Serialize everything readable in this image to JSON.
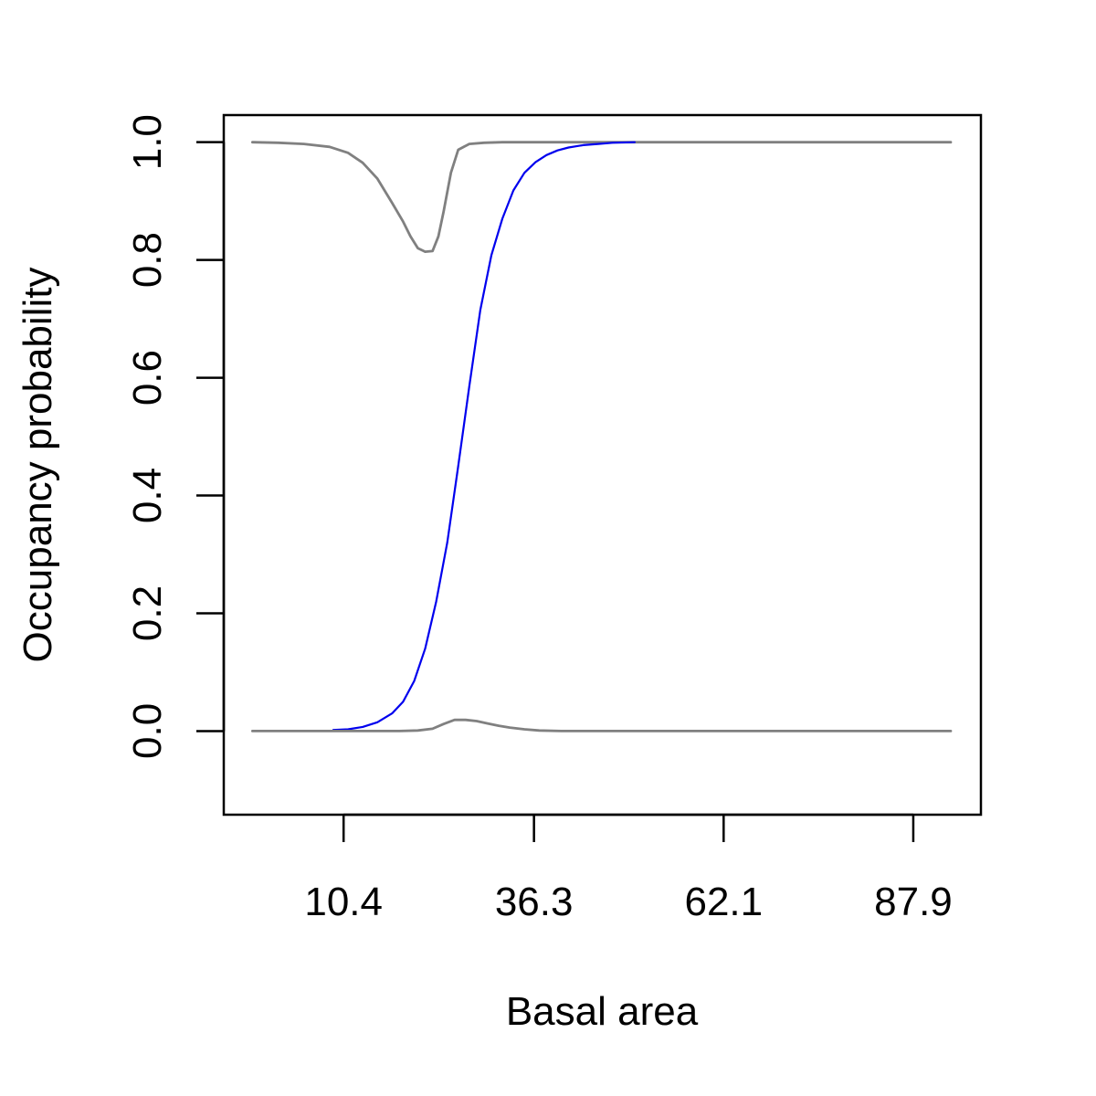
{
  "chart_data": {
    "type": "line",
    "title": "",
    "xlabel": "Basal area",
    "ylabel": "Occupancy probability",
    "xlim": [
      -5.9,
      97.1
    ],
    "ylim": [
      -0.142,
      1.046
    ],
    "grid": false,
    "legend": "none",
    "x_ticks": [
      10.4,
      36.3,
      62.1,
      87.9
    ],
    "x_tick_labels": [
      "10.4",
      "36.3",
      "62.1",
      "87.9"
    ],
    "y_ticks": [
      0.0,
      0.2,
      0.4,
      0.6,
      0.8,
      1.0
    ],
    "y_tick_labels": [
      "0.0",
      "0.2",
      "0.4",
      "0.6",
      "0.8",
      "1.0"
    ],
    "series": [
      {
        "role": "upper-bound",
        "color": "#808080",
        "x": [
          -2.0,
          1.5,
          5.0,
          8.5,
          11.0,
          13.0,
          15.0,
          17.0,
          18.5,
          19.5,
          20.5,
          21.5,
          22.5,
          23.3,
          24.0,
          25.0,
          26.0,
          27.5,
          29.5,
          32.0,
          36.0,
          45.0,
          60.0,
          75.0,
          93.0
        ],
        "y": [
          1.0,
          0.999,
          0.997,
          0.992,
          0.982,
          0.965,
          0.938,
          0.897,
          0.865,
          0.84,
          0.82,
          0.814,
          0.815,
          0.84,
          0.882,
          0.948,
          0.987,
          0.997,
          0.999,
          1.0,
          1.0,
          1.0,
          1.0,
          1.0,
          1.0
        ]
      },
      {
        "role": "estimate",
        "color": "#0000ee",
        "x": [
          9.0,
          11.0,
          13.0,
          15.0,
          17.0,
          18.5,
          20.0,
          21.5,
          23.0,
          24.5,
          26.0,
          27.5,
          29.0,
          30.5,
          32.0,
          33.5,
          35.0,
          36.5,
          38.0,
          39.5,
          41.0,
          43.0,
          45.0,
          47.0,
          50.0
        ],
        "y": [
          0.002,
          0.003,
          0.007,
          0.015,
          0.03,
          0.05,
          0.085,
          0.14,
          0.22,
          0.32,
          0.45,
          0.585,
          0.715,
          0.808,
          0.87,
          0.918,
          0.948,
          0.966,
          0.978,
          0.986,
          0.991,
          0.995,
          0.997,
          0.999,
          1.0
        ]
      },
      {
        "role": "lower-bound",
        "color": "#808080",
        "x": [
          -2.0,
          5.0,
          12.0,
          18.0,
          20.5,
          22.5,
          24.0,
          25.5,
          27.0,
          28.5,
          30.0,
          31.5,
          33.0,
          35.0,
          37.0,
          40.0,
          50.0,
          70.0,
          93.0
        ],
        "y": [
          0.0,
          0.0,
          0.0,
          0.0,
          0.001,
          0.004,
          0.012,
          0.019,
          0.019,
          0.017,
          0.013,
          0.009,
          0.006,
          0.003,
          0.001,
          0.0,
          0.0,
          0.0,
          0.0
        ]
      }
    ]
  }
}
